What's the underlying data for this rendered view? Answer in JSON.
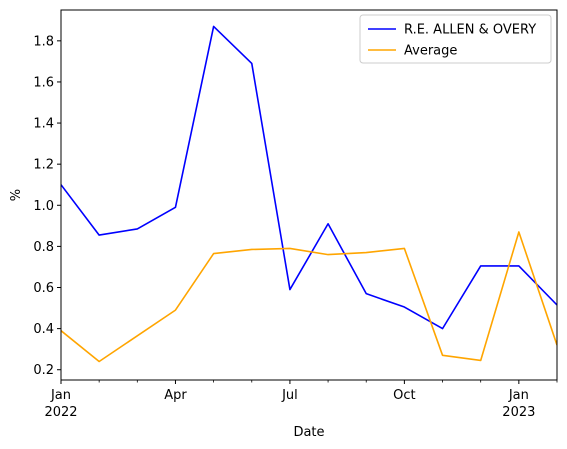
{
  "chart_data": {
    "type": "line",
    "xlabel": "Date",
    "ylabel": "%",
    "xlim": [
      "2022-01",
      "2023-02"
    ],
    "ylim": [
      0.15,
      1.95
    ],
    "grid": false,
    "legend_position": "top-right",
    "x": [
      "2022-01",
      "2022-02",
      "2022-03",
      "2022-04",
      "2022-05",
      "2022-06",
      "2022-07",
      "2022-08",
      "2022-09",
      "2022-10",
      "2022-11",
      "2022-12",
      "2023-01",
      "2023-02"
    ],
    "x_ticks": [
      {
        "x": "2022-01",
        "label": "Jan",
        "sublabel": "2022"
      },
      {
        "x": "2022-04",
        "label": "Apr",
        "sublabel": ""
      },
      {
        "x": "2022-07",
        "label": "Jul",
        "sublabel": ""
      },
      {
        "x": "2022-10",
        "label": "Oct",
        "sublabel": ""
      },
      {
        "x": "2023-01",
        "label": "Jan",
        "sublabel": "2023"
      }
    ],
    "y_ticks": [
      "0.2",
      "0.4",
      "0.6",
      "0.8",
      "1.0",
      "1.2",
      "1.4",
      "1.6",
      "1.8"
    ],
    "series": [
      {
        "name": "R.E. ALLEN & OVERY",
        "color": "#0000ff",
        "values": [
          1.1,
          0.855,
          0.885,
          0.99,
          1.87,
          1.69,
          0.59,
          0.91,
          0.57,
          0.505,
          0.4,
          0.705,
          0.705,
          0.515
        ]
      },
      {
        "name": "Average",
        "color": "#ffa500",
        "values": [
          0.39,
          0.24,
          0.365,
          0.49,
          0.765,
          0.785,
          0.79,
          0.76,
          0.77,
          0.79,
          0.27,
          0.245,
          0.87,
          0.32
        ]
      }
    ]
  }
}
